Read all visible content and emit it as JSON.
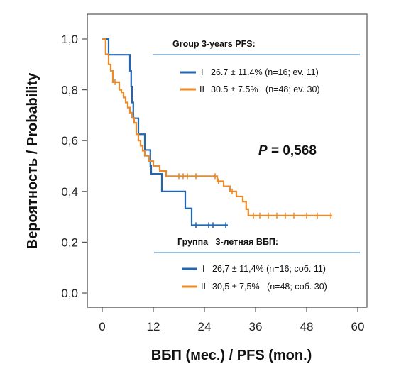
{
  "chart_data": {
    "type": "line",
    "subtype": "kaplan-meier-step",
    "xlabel": "ВБП (мес.) / PFS (mon.)",
    "ylabel": "Вероятность / Probability",
    "xlim": [
      0,
      60
    ],
    "ylim": [
      0,
      1
    ],
    "x_ticks": [
      "0",
      "12",
      "24",
      "36",
      "48",
      "60"
    ],
    "y_ticks": [
      "0,0",
      "0,2",
      "0,4",
      "0,6",
      "0,8",
      "1,0"
    ],
    "grid": false,
    "p_value": {
      "prefix": "P",
      "text": " = 0,568"
    },
    "legend_en": {
      "header": "Group  3-years PFS:",
      "entries": [
        {
          "group": "I",
          "text": "26.7 ± 11.4% (n=16; ev. 11)"
        },
        {
          "group": "II",
          "text": "30.5 ± 7.5%   (n=48; ev. 30)"
        }
      ]
    },
    "legend_ru": {
      "header": "Группа   3-летняя ВБП:",
      "entries": [
        {
          "group": "I",
          "text": "26,7 ± 11,4% (n=16; соб. 11)"
        },
        {
          "group": "II",
          "text": "30,5 ± 7,5%   (n=48; соб. 30)"
        }
      ]
    },
    "series": [
      {
        "id": "group-1",
        "color": "#2366b0",
        "steps": [
          [
            0,
            1.0
          ],
          [
            1.5,
            0.938
          ],
          [
            6.5,
            0.875
          ],
          [
            6.8,
            0.813
          ],
          [
            7.0,
            0.75
          ],
          [
            7.3,
            0.688
          ],
          [
            8.5,
            0.625
          ],
          [
            10.0,
            0.563
          ],
          [
            11.3,
            0.5
          ],
          [
            11.5,
            0.469
          ],
          [
            14.0,
            0.4
          ],
          [
            19.5,
            0.333
          ],
          [
            21.0,
            0.267
          ],
          [
            29.5,
            0.267
          ]
        ],
        "censored": [
          22,
          25,
          26,
          29
        ]
      },
      {
        "id": "group-2",
        "color": "#ea8a2a",
        "steps": [
          [
            0,
            1.0
          ],
          [
            0.8,
            0.94
          ],
          [
            1.5,
            0.9
          ],
          [
            2.0,
            0.875
          ],
          [
            2.5,
            0.83
          ],
          [
            4.0,
            0.8
          ],
          [
            4.5,
            0.79
          ],
          [
            5.0,
            0.77
          ],
          [
            5.5,
            0.75
          ],
          [
            6.0,
            0.73
          ],
          [
            6.5,
            0.71
          ],
          [
            7.0,
            0.69
          ],
          [
            7.5,
            0.67
          ],
          [
            8.0,
            0.625
          ],
          [
            8.5,
            0.6
          ],
          [
            9.0,
            0.58
          ],
          [
            9.5,
            0.56
          ],
          [
            10.0,
            0.54
          ],
          [
            11.0,
            0.52
          ],
          [
            12.0,
            0.5
          ],
          [
            13.5,
            0.48
          ],
          [
            15.0,
            0.46
          ],
          [
            19.0,
            0.46
          ],
          [
            27.0,
            0.44
          ],
          [
            28.5,
            0.42
          ],
          [
            30.0,
            0.4
          ],
          [
            31.5,
            0.38
          ],
          [
            33.0,
            0.36
          ],
          [
            33.8,
            0.33
          ],
          [
            34.3,
            0.305
          ],
          [
            54.0,
            0.305
          ]
        ],
        "censored": [
          3,
          18,
          19,
          20,
          22,
          26.5,
          27.3,
          30.5,
          35.5,
          37,
          39,
          41,
          43,
          45,
          48,
          50.5,
          53.7
        ]
      }
    ]
  }
}
